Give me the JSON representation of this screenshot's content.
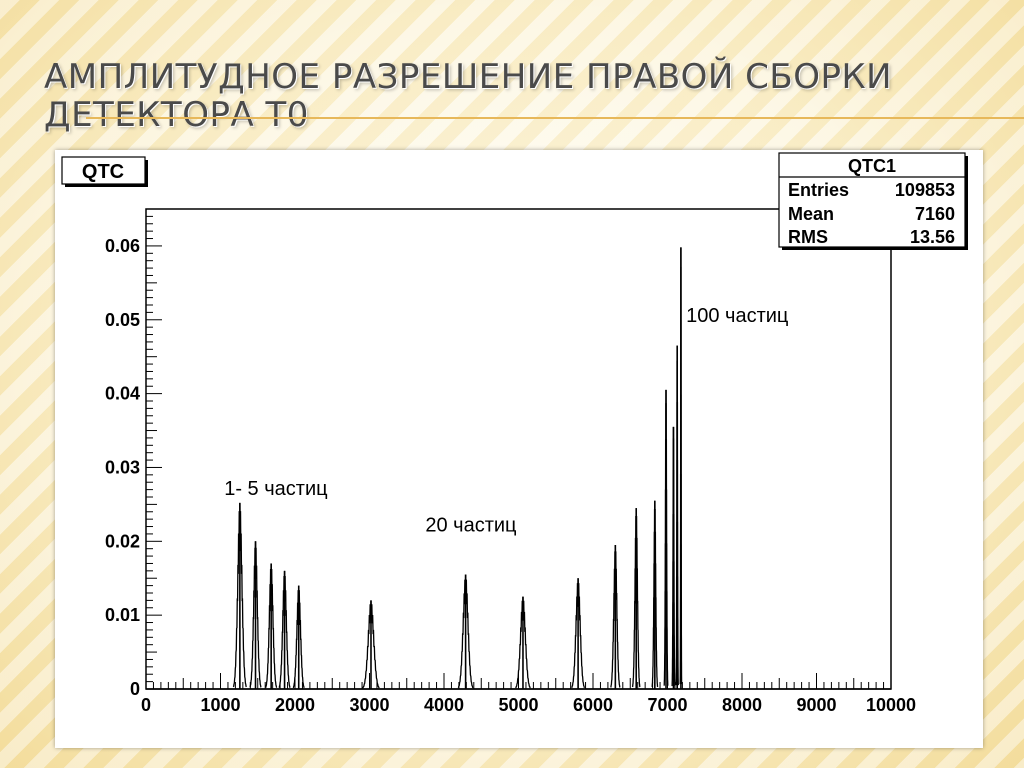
{
  "slide": {
    "title": "АМПЛИТУДНОЕ РАЗРЕШЕНИЕ ПРАВОЙ СБОРКИ ДЕТЕКТОРА Т0"
  },
  "colors": {
    "title_text": "#4a4a4a",
    "accent_rule": "#e7b85a",
    "plot_line": "#000000",
    "plot_background": "#ffffff"
  },
  "chart_data": {
    "type": "histogram",
    "title": "QTC",
    "xlabel": "",
    "ylabel": "",
    "xlim": [
      0,
      10000
    ],
    "ylim": [
      0,
      0.065
    ],
    "grid": false,
    "x_ticks": [
      "0",
      "1000",
      "2000",
      "3000",
      "4000",
      "5000",
      "6000",
      "7000",
      "8000",
      "9000",
      "10000"
    ],
    "y_ticks": [
      "0",
      "0.01",
      "0.02",
      "0.03",
      "0.04",
      "0.05",
      "0.06"
    ],
    "stats": {
      "name": "QTC1",
      "rows": [
        {
          "label": "Entries",
          "value": "109853"
        },
        {
          "label": "Mean",
          "value": "7160"
        },
        {
          "label": "RMS",
          "value": "13.56"
        }
      ]
    },
    "annotations": [
      {
        "text": "1- 5 частиц",
        "x": 1050,
        "y": 0.0263
      },
      {
        "text": "20 частиц",
        "x": 3750,
        "y": 0.0213
      },
      {
        "text": "100 частиц",
        "x": 7250,
        "y": 0.0497
      }
    ],
    "peaks": [
      {
        "x": 1260,
        "y": 0.0252,
        "width": 70
      },
      {
        "x": 1470,
        "y": 0.02,
        "width": 60
      },
      {
        "x": 1680,
        "y": 0.017,
        "width": 60
      },
      {
        "x": 1860,
        "y": 0.016,
        "width": 60
      },
      {
        "x": 2050,
        "y": 0.014,
        "width": 60
      },
      {
        "x": 3020,
        "y": 0.012,
        "width": 90
      },
      {
        "x": 4290,
        "y": 0.0155,
        "width": 80
      },
      {
        "x": 5060,
        "y": 0.0125,
        "width": 80
      },
      {
        "x": 5800,
        "y": 0.015,
        "width": 70
      },
      {
        "x": 6300,
        "y": 0.0195,
        "width": 50
      },
      {
        "x": 6580,
        "y": 0.0245,
        "width": 40
      },
      {
        "x": 6830,
        "y": 0.0255,
        "width": 30
      },
      {
        "x": 6980,
        "y": 0.0405,
        "width": 20
      },
      {
        "x": 7080,
        "y": 0.0355,
        "width": 15
      },
      {
        "x": 7130,
        "y": 0.0465,
        "width": 12
      },
      {
        "x": 7180,
        "y": 0.0598,
        "width": 8
      }
    ]
  }
}
